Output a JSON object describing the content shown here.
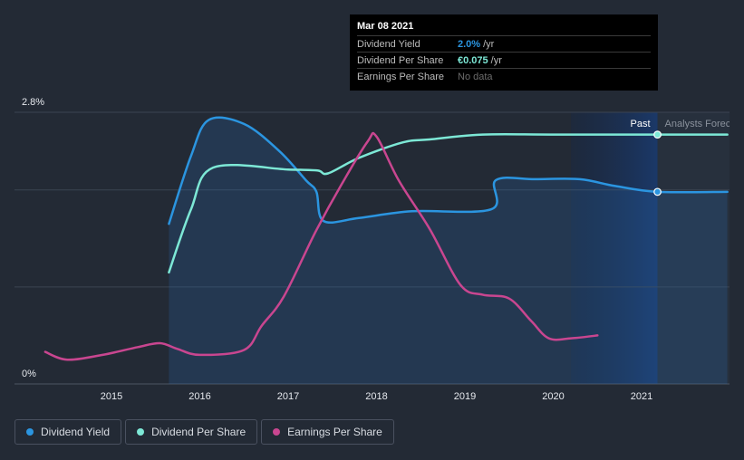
{
  "chart_data": {
    "type": "line",
    "y_axis": {
      "min": 0,
      "max": 2.8,
      "top_label": "2.8%",
      "bottom_label": "0%"
    },
    "x_ticks": [
      "2015",
      "2016",
      "2017",
      "2018",
      "2019",
      "2020",
      "2021"
    ],
    "region_labels": {
      "past": "Past",
      "forecast": "Analysts Forecasts"
    },
    "series": [
      {
        "name": "Dividend Yield",
        "color": "#2b95e0",
        "points": [
          [
            2015.65,
            1.65
          ],
          [
            2015.9,
            2.35
          ],
          [
            2016.1,
            2.72
          ],
          [
            2016.5,
            2.68
          ],
          [
            2016.9,
            2.4
          ],
          [
            2017.2,
            2.1
          ],
          [
            2017.32,
            1.98
          ],
          [
            2017.4,
            1.68
          ],
          [
            2017.8,
            1.71
          ],
          [
            2018.4,
            1.78
          ],
          [
            2019.3,
            1.8
          ],
          [
            2019.35,
            2.1
          ],
          [
            2019.8,
            2.11
          ],
          [
            2020.3,
            2.11
          ],
          [
            2020.7,
            2.04
          ],
          [
            2021.18,
            1.98
          ],
          [
            2021.97,
            1.98
          ]
        ]
      },
      {
        "name": "Dividend Per Share",
        "color": "#7de8d6",
        "points": [
          [
            2015.65,
            1.15
          ],
          [
            2015.9,
            1.8
          ],
          [
            2016.15,
            2.23
          ],
          [
            2017.0,
            2.21
          ],
          [
            2017.33,
            2.2
          ],
          [
            2017.45,
            2.17
          ],
          [
            2017.8,
            2.33
          ],
          [
            2018.3,
            2.49
          ],
          [
            2018.6,
            2.52
          ],
          [
            2019.2,
            2.57
          ],
          [
            2020.0,
            2.57
          ],
          [
            2021.18,
            2.57
          ],
          [
            2021.97,
            2.57
          ]
        ]
      },
      {
        "name": "Earnings Per Share",
        "color": "#c94690",
        "points": [
          [
            2014.25,
            0.33
          ],
          [
            2014.5,
            0.25
          ],
          [
            2014.9,
            0.3
          ],
          [
            2015.3,
            0.38
          ],
          [
            2015.55,
            0.42
          ],
          [
            2015.75,
            0.36
          ],
          [
            2016.0,
            0.3
          ],
          [
            2016.5,
            0.35
          ],
          [
            2016.7,
            0.6
          ],
          [
            2016.95,
            0.9
          ],
          [
            2017.3,
            1.55
          ],
          [
            2017.6,
            2.05
          ],
          [
            2017.9,
            2.5
          ],
          [
            2018.0,
            2.55
          ],
          [
            2018.25,
            2.1
          ],
          [
            2018.6,
            1.6
          ],
          [
            2018.95,
            1.02
          ],
          [
            2019.2,
            0.92
          ],
          [
            2019.5,
            0.88
          ],
          [
            2019.75,
            0.65
          ],
          [
            2019.95,
            0.47
          ],
          [
            2020.2,
            0.47
          ],
          [
            2020.5,
            0.5
          ]
        ]
      }
    ],
    "tooltip": {
      "date": "Mar 08 2021",
      "rows": [
        {
          "label": "Dividend Yield",
          "value": "2.0%",
          "unit": "/yr"
        },
        {
          "label": "Dividend Per Share",
          "value": "€0.075",
          "unit": "/yr"
        },
        {
          "label": "Earnings Per Share",
          "value": "No data",
          "unit": ""
        }
      ]
    },
    "legend": [
      "Dividend Yield",
      "Dividend Per Share",
      "Earnings Per Share"
    ]
  }
}
